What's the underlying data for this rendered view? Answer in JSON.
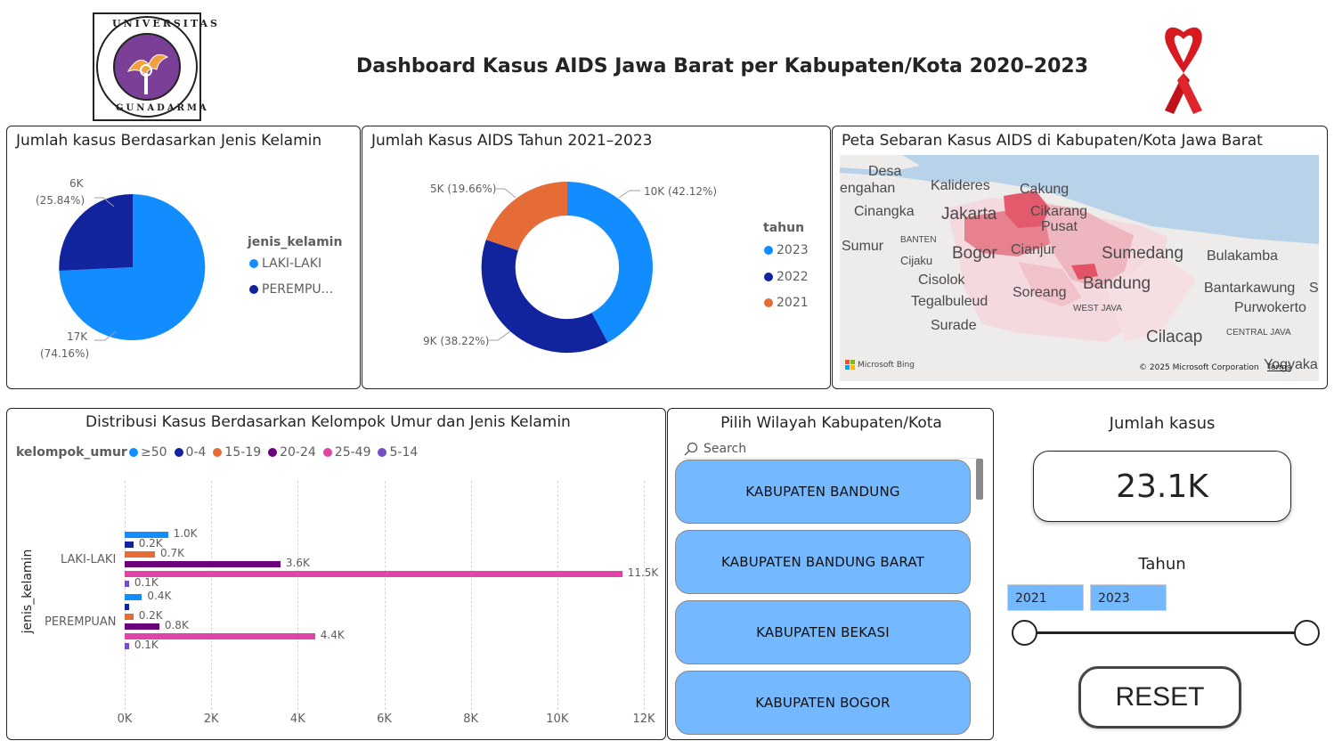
{
  "header": {
    "title": "Dashboard Kasus AIDS Jawa Barat per Kabupaten/Kota 2020–2023",
    "logo_text_top": "UNIVERSITAS",
    "logo_text_bottom": "GUNADARMA"
  },
  "gender_pie": {
    "title": "Jumlah kasus Berdasarkan Jenis Kelamin",
    "legend_title": "jenis_kelamin",
    "slices": [
      {
        "name": "LAKI-LAKI",
        "value_label": "17K",
        "pct_label": "(74.16%)",
        "pct": 74.16,
        "color": "#118dff"
      },
      {
        "name": "PEREMPU...",
        "value_label": "6K",
        "pct_label": "(25.84%)",
        "pct": 25.84,
        "color": "#12239e"
      }
    ]
  },
  "year_donut": {
    "title": "Jumlah Kasus AIDS Tahun 2021–2023",
    "legend_title": "tahun",
    "slices": [
      {
        "name": "2023",
        "label": "10K (42.12%)",
        "pct": 42.12,
        "color": "#118dff"
      },
      {
        "name": "2022",
        "label": "9K (38.22%)",
        "pct": 38.22,
        "color": "#12239e"
      },
      {
        "name": "2021",
        "label": "5K (19.66%)",
        "pct": 19.66,
        "color": "#e66c37"
      }
    ]
  },
  "map": {
    "title": "Peta Sebaran Kasus AIDS di Kabupaten/Kota Jawa Barat",
    "attribution_left": "Microsoft Bing",
    "attribution_right": "© 2025 Microsoft Corporation",
    "terms": "Terms",
    "places": [
      {
        "name": "Desa",
        "size": 16
      },
      {
        "name": "engahan",
        "size": 16
      },
      {
        "name": "Kalideres",
        "size": 16
      },
      {
        "name": "Cakung",
        "size": 16
      },
      {
        "name": "Cinangka",
        "size": 16
      },
      {
        "name": "Jakarta",
        "size": 19
      },
      {
        "name": "Cikarang",
        "size": 16
      },
      {
        "name": "Pusat",
        "size": 16
      },
      {
        "name": "Sumur",
        "size": 16
      },
      {
        "name": "BANTEN",
        "size": 10
      },
      {
        "name": "Bogor",
        "size": 19
      },
      {
        "name": "Cianjur",
        "size": 16
      },
      {
        "name": "Sumedang",
        "size": 19
      },
      {
        "name": "Bulakamba",
        "size": 16
      },
      {
        "name": "Cijaku",
        "size": 13
      },
      {
        "name": "Cisolok",
        "size": 16
      },
      {
        "name": "Bandung",
        "size": 19
      },
      {
        "name": "Bantarkawung",
        "size": 16
      },
      {
        "name": "S",
        "size": 16
      },
      {
        "name": "Soreang",
        "size": 16
      },
      {
        "name": "Tegalbuleud",
        "size": 16
      },
      {
        "name": "WEST JAVA",
        "size": 10
      },
      {
        "name": "Purwokerto",
        "size": 16
      },
      {
        "name": "Surade",
        "size": 16
      },
      {
        "name": "Cilacap",
        "size": 19
      },
      {
        "name": "CENTRAL JAVA",
        "size": 10
      },
      {
        "name": "Yogyaka",
        "size": 16
      }
    ]
  },
  "age_chart": {
    "title": "Distribusi Kasus Berdasarkan Kelompok Umur dan Jenis Kelamin",
    "legend_title": "kelompok_umur",
    "ylabel": "jenis_kelamin"
  },
  "chart_data": {
    "type": "bar",
    "orientation": "horizontal",
    "categories": [
      "LAKI-LAKI",
      "PEREMPUAN"
    ],
    "series": [
      {
        "name": "≥50",
        "color": "#118dff",
        "values": [
          1.0,
          0.4
        ],
        "labels": [
          "1.0K",
          "0.4K"
        ]
      },
      {
        "name": "0-4",
        "color": "#12239e",
        "values": [
          0.2,
          0.1
        ],
        "labels": [
          "0.2K",
          ""
        ]
      },
      {
        "name": "15-19",
        "color": "#e66c37",
        "values": [
          0.7,
          0.2
        ],
        "labels": [
          "0.7K",
          "0.2K"
        ]
      },
      {
        "name": "20-24",
        "color": "#6b007b",
        "values": [
          3.6,
          0.8
        ],
        "labels": [
          "3.6K",
          "0.8K"
        ]
      },
      {
        "name": "25-49",
        "color": "#e044a7",
        "values": [
          11.5,
          4.4
        ],
        "labels": [
          "11.5K",
          "4.4K"
        ]
      },
      {
        "name": "5-14",
        "color": "#744ec2",
        "values": [
          0.1,
          0.1
        ],
        "labels": [
          "0.1K",
          "0.1K"
        ]
      }
    ],
    "xlim": [
      0,
      12
    ],
    "xticks": [
      "0K",
      "2K",
      "4K",
      "6K",
      "8K",
      "10K",
      "12K"
    ],
    "ylabel": "jenis_kelamin",
    "grid": true,
    "legend_position": "top-left"
  },
  "region_slicer": {
    "title": "Pilih Wilayah Kabupaten/Kota",
    "search_placeholder": "Search",
    "items": [
      "KABUPATEN BANDUNG",
      "KABUPATEN BANDUNG BARAT",
      "KABUPATEN BEKASI",
      "KABUPATEN BOGOR"
    ]
  },
  "kpi": {
    "title": "Jumlah kasus",
    "value": "23.1K"
  },
  "year_slicer": {
    "title": "Tahun",
    "from": "2021",
    "to": "2023"
  },
  "reset": {
    "label": "RESET"
  }
}
